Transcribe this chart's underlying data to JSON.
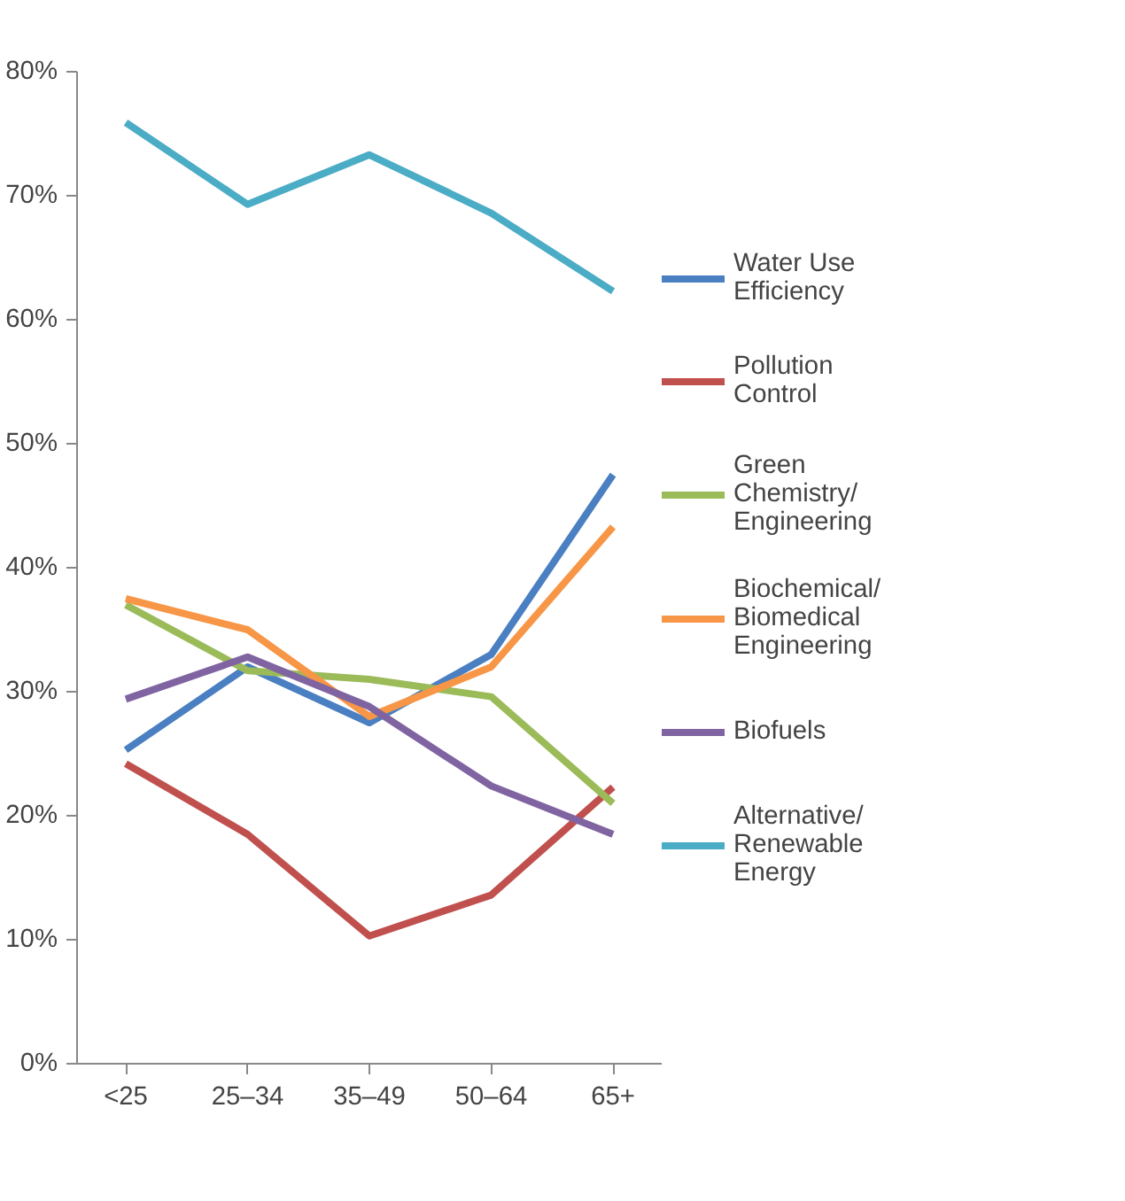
{
  "chart_data": {
    "type": "line",
    "categories": [
      "<25",
      "25–34",
      "35–49",
      "50–64",
      "65+"
    ],
    "ylim": [
      0,
      80
    ],
    "yticks": [
      {
        "value": 0,
        "label": "0%"
      },
      {
        "value": 10,
        "label": "10%"
      },
      {
        "value": 20,
        "label": "20%"
      },
      {
        "value": 30,
        "label": "30%"
      },
      {
        "value": 40,
        "label": "40%"
      },
      {
        "value": 50,
        "label": "50%"
      },
      {
        "value": 60,
        "label": "60%"
      },
      {
        "value": 70,
        "label": "70%"
      },
      {
        "value": 80,
        "label": "80%"
      }
    ],
    "grid": false,
    "legend": "right",
    "marker": "none",
    "line_style": "solid",
    "series": [
      {
        "name": "Water Use Efficiency",
        "color": "#4a7fc1",
        "values": [
          25.3,
          32.0,
          27.5,
          33.0,
          47.5
        ]
      },
      {
        "name": "Pollution Control",
        "color": "#c0504d",
        "values": [
          24.2,
          18.5,
          10.3,
          13.6,
          22.3
        ]
      },
      {
        "name": "Green Chemistry/Engineering",
        "color": "#9bbb59",
        "values": [
          37.0,
          31.7,
          31.0,
          29.6,
          21.0
        ]
      },
      {
        "name": "Biochemical/Biomedical Engineering",
        "color": "#f79646",
        "values": [
          37.5,
          35.0,
          28.0,
          32.0,
          43.3
        ]
      },
      {
        "name": "Biofuels",
        "color": "#8064a2",
        "values": [
          29.4,
          32.8,
          28.8,
          22.4,
          18.5
        ]
      },
      {
        "name": "Alternative/Renewable Energy",
        "color": "#4bacc6",
        "values": [
          75.9,
          69.3,
          73.3,
          68.6,
          62.3
        ]
      }
    ]
  }
}
